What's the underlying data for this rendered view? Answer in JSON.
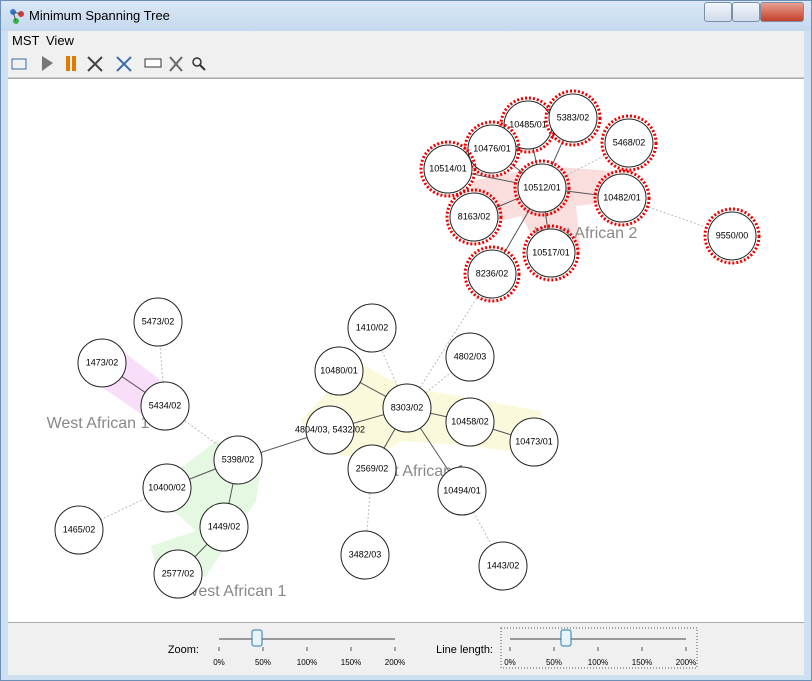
{
  "window": {
    "title": "Minimum Spanning Tree"
  },
  "menu": [
    "MST",
    "View"
  ],
  "nodes": [
    {
      "label": "10485/01"
    },
    {
      "label": "5383/02"
    },
    {
      "label": "10476/01"
    },
    {
      "label": "5468/02"
    },
    {
      "label": "10514/01"
    },
    {
      "label": "10512/01"
    },
    {
      "label": "10482/01"
    },
    {
      "label": "8163/02"
    },
    {
      "label": "10517/01"
    },
    {
      "label": "9550/00"
    },
    {
      "label": "8236/02"
    },
    {
      "label": "5473/02"
    },
    {
      "label": "1410/02"
    },
    {
      "label": "1473/02"
    },
    {
      "label": "4802/03"
    },
    {
      "label": "10480/01"
    },
    {
      "label": "5434/02"
    },
    {
      "label": "8303/02"
    },
    {
      "label": "10458/02"
    },
    {
      "label": "10473/01"
    },
    {
      "label": "4804/03, 5432/02"
    },
    {
      "label": "5398/02"
    },
    {
      "label": "2569/02"
    },
    {
      "label": "10494/01"
    },
    {
      "label": "10400/02"
    },
    {
      "label": "1449/02"
    },
    {
      "label": "1465/02"
    },
    {
      "label": "3482/03"
    },
    {
      "label": "1443/02"
    },
    {
      "label": "2577/02"
    }
  ],
  "clusters": [
    "West African 2",
    "West African 1",
    "West African 1",
    "West African 1"
  ],
  "controls": {
    "zoom_label": "Zoom:",
    "line_length_label": "Line length:",
    "scale": [
      "0%",
      "50%",
      "100%",
      "150%",
      "200%"
    ]
  }
}
